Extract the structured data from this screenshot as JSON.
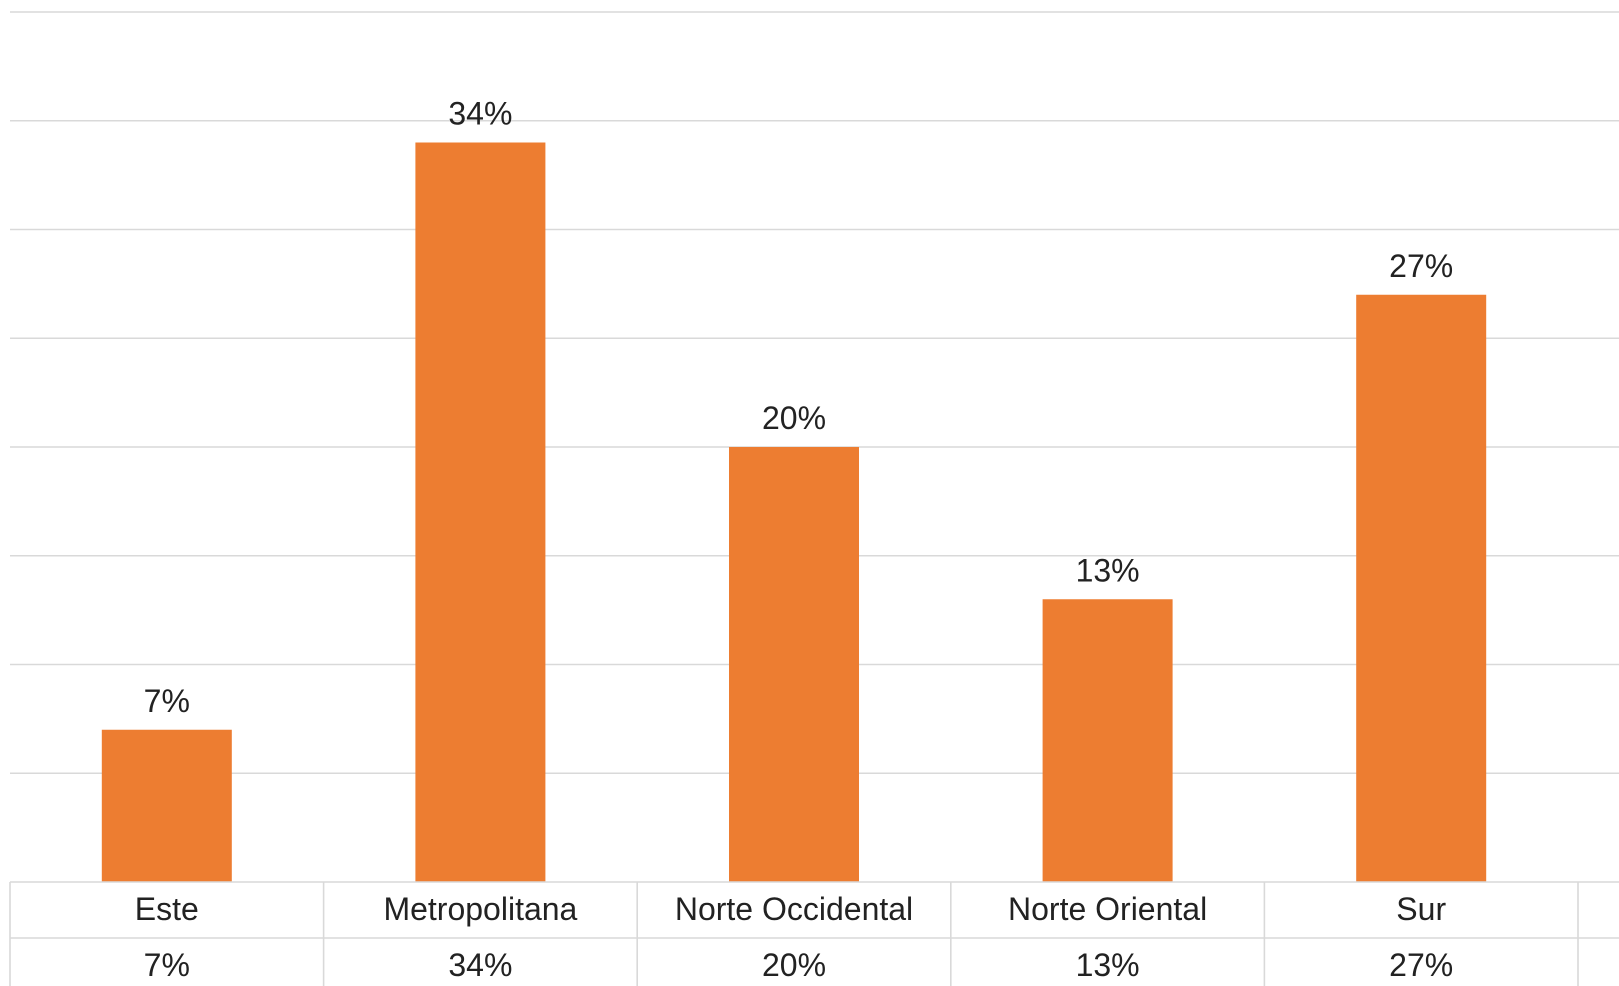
{
  "chart_data": {
    "type": "bar",
    "categories": [
      "Este",
      "Metropolitana",
      "Norte Occidental",
      "Norte Oriental",
      "Sur"
    ],
    "values": [
      7,
      34,
      20,
      13,
      27
    ],
    "value_labels": [
      "7%",
      "34%",
      "20%",
      "13%",
      "27%"
    ],
    "table_values": [
      "7%",
      "34%",
      "20%",
      "13%",
      "27%"
    ],
    "ylim": [
      0,
      40
    ],
    "grid": true,
    "bar_color": "#ED7D31",
    "grid_color": "#D9D9D9",
    "text_color": "#222222",
    "title": "",
    "xlabel": "",
    "ylabel": ""
  }
}
